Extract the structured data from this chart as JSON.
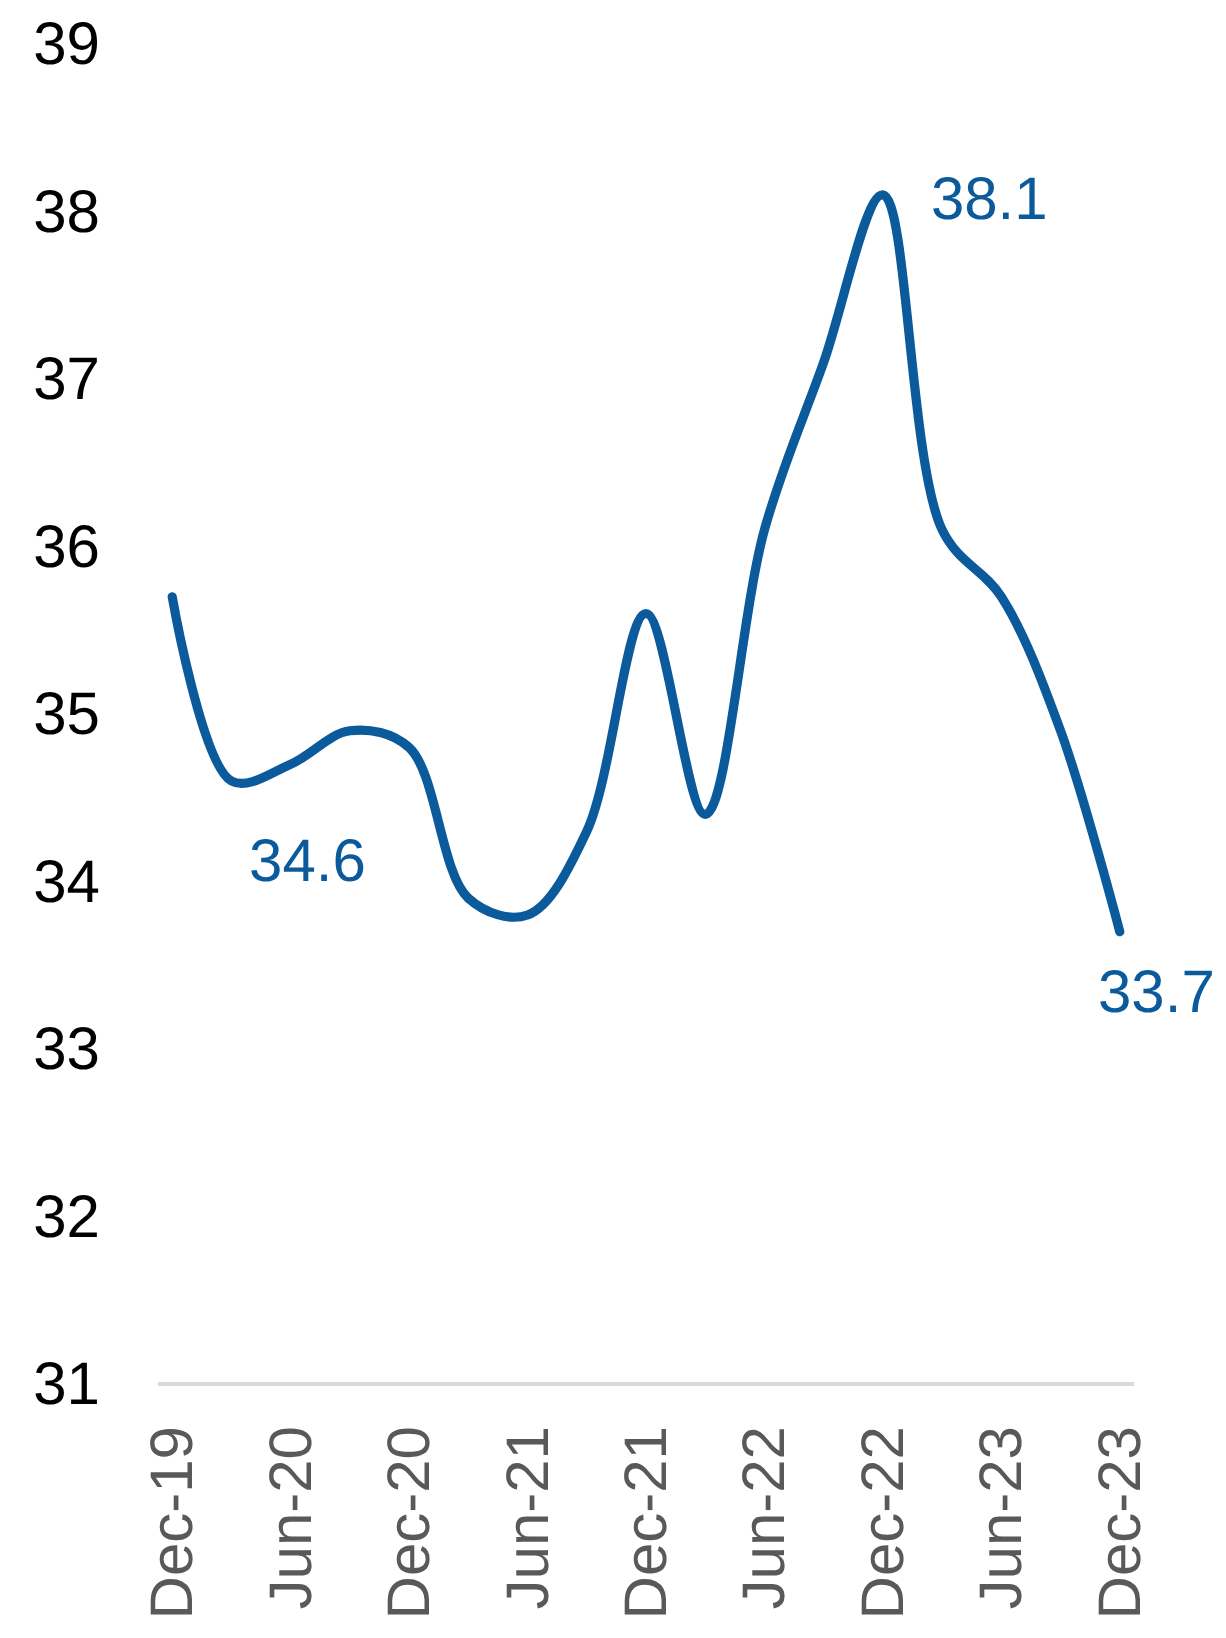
{
  "chart_data": {
    "type": "line",
    "categories": [
      "Dec-19",
      null,
      "Jun-20",
      null,
      "Dec-20",
      null,
      "Jun-21",
      null,
      "Dec-21",
      null,
      "Jun-22",
      null,
      "Dec-22",
      null,
      "Jun-23",
      null,
      "Dec-23"
    ],
    "series": [
      {
        "color": "#0b5a9c",
        "values": [
          35.7,
          34.6,
          34.7,
          34.9,
          34.8,
          33.9,
          33.8,
          34.3,
          35.6,
          34.4,
          36.1,
          37.1,
          38.1,
          36.1,
          35.7,
          34.9,
          33.7
        ],
        "value_labels": [
          null,
          "34.6",
          null,
          null,
          null,
          null,
          null,
          null,
          null,
          null,
          null,
          null,
          "38.1",
          null,
          null,
          null,
          "33.7"
        ]
      }
    ],
    "ylim": [
      31,
      39
    ],
    "yticks": [
      31,
      32,
      33,
      34,
      35,
      36,
      37,
      38,
      39
    ],
    "line_style": "solid"
  }
}
